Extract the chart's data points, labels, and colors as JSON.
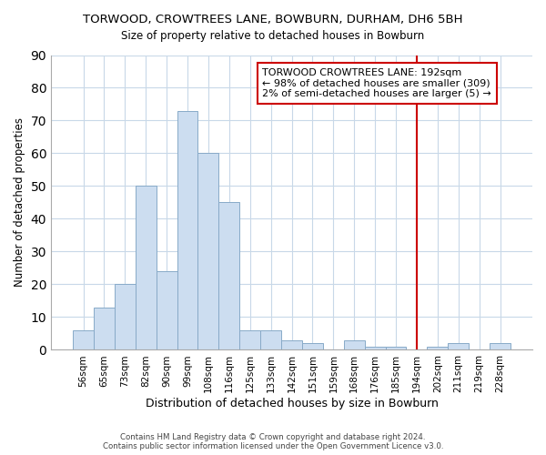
{
  "title": "TORWOOD, CROWTREES LANE, BOWBURN, DURHAM, DH6 5BH",
  "subtitle": "Size of property relative to detached houses in Bowburn",
  "xlabel": "Distribution of detached houses by size in Bowburn",
  "ylabel": "Number of detached properties",
  "bar_color": "#ccddf0",
  "bar_edge_color": "#88aac8",
  "categories": [
    "56sqm",
    "65sqm",
    "73sqm",
    "82sqm",
    "90sqm",
    "99sqm",
    "108sqm",
    "116sqm",
    "125sqm",
    "133sqm",
    "142sqm",
    "151sqm",
    "159sqm",
    "168sqm",
    "176sqm",
    "185sqm",
    "194sqm",
    "202sqm",
    "211sqm",
    "219sqm",
    "228sqm"
  ],
  "values": [
    6,
    13,
    20,
    50,
    24,
    73,
    60,
    45,
    6,
    6,
    3,
    2,
    0,
    3,
    1,
    1,
    0,
    1,
    2,
    0,
    2
  ],
  "vline_index": 16,
  "vline_color": "#cc0000",
  "annotation_text": "TORWOOD CROWTREES LANE: 192sqm\n← 98% of detached houses are smaller (309)\n2% of semi-detached houses are larger (5) →",
  "footer": "Contains HM Land Registry data © Crown copyright and database right 2024.\nContains public sector information licensed under the Open Government Licence v3.0.",
  "ylim": [
    0,
    90
  ],
  "background_color": "#ffffff",
  "grid_color": "#c8d8e8"
}
